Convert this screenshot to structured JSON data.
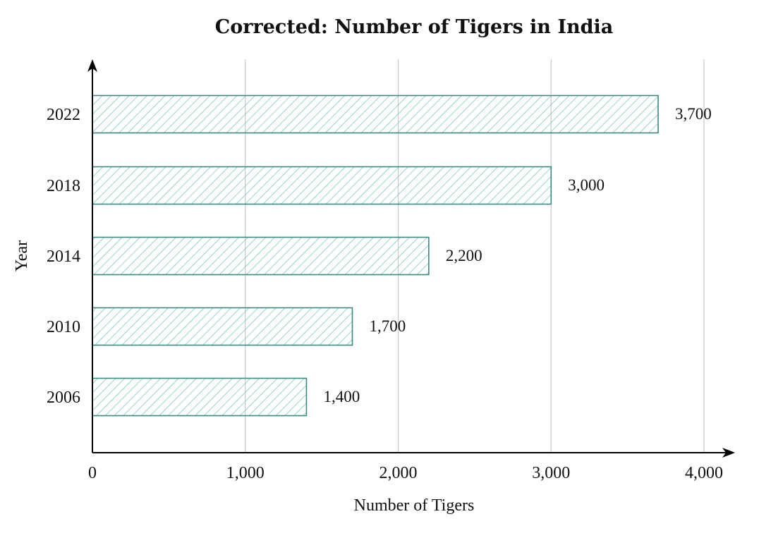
{
  "chart_data": {
    "type": "bar",
    "orientation": "horizontal",
    "title": "Corrected: Number of Tigers in India",
    "xlabel": "Number of Tigers",
    "ylabel": "Year",
    "categories": [
      "2006",
      "2010",
      "2014",
      "2018",
      "2022"
    ],
    "values": [
      1400,
      1700,
      2200,
      3000,
      3700
    ],
    "value_labels": [
      "1,400",
      "1,700",
      "2,200",
      "3,000",
      "3,700"
    ],
    "xlim": [
      0,
      4000
    ],
    "x_ticks": [
      0,
      1000,
      2000,
      3000,
      4000
    ],
    "x_tick_labels": [
      "0",
      "1,000",
      "2,000",
      "3,000",
      "4,000"
    ],
    "grid": "vertical",
    "bar_fill": "hatched",
    "colors": {
      "bar_stroke": "#3a8a84",
      "bar_hatch": "#7ec9c1",
      "grid": "#c8c8c8",
      "axis": "#000000"
    }
  }
}
